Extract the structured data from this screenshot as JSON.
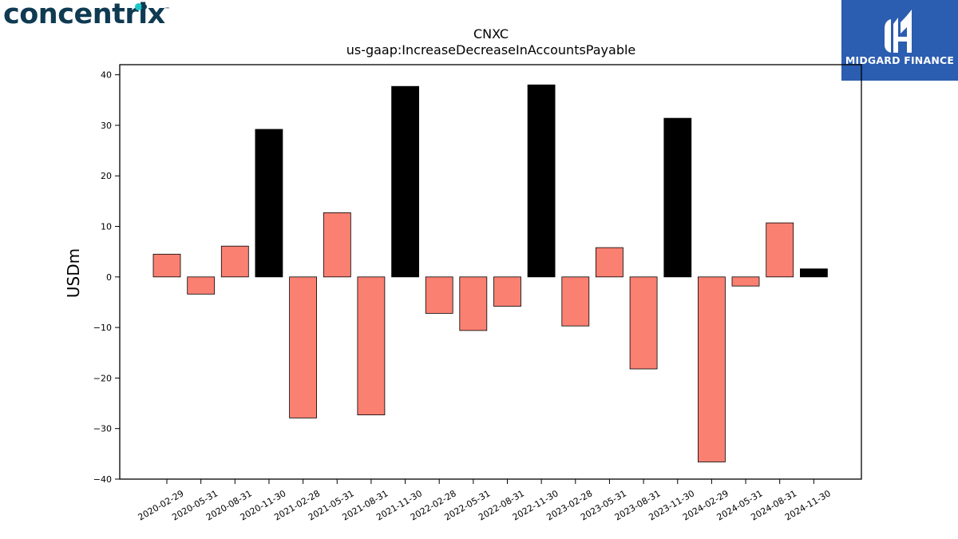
{
  "logos": {
    "left_text": "concentrix",
    "left_tm": "™",
    "right_text": "MIDGARD FINANCE"
  },
  "colors": {
    "negative_or_interim": "#fa8072",
    "q4": "#000000",
    "brand_blue": "#2b5db0"
  },
  "chart_data": {
    "type": "bar",
    "title": "CNXC",
    "subtitle": "us-gaap:IncreaseDecreaseInAccountsPayable",
    "xlabel": "",
    "ylabel": "USDm",
    "ylim": [
      -40,
      42
    ],
    "yticks": [
      -40,
      -30,
      -20,
      -10,
      0,
      10,
      20,
      30,
      40
    ],
    "grid": false,
    "categories": [
      "2020-02-29",
      "2020-05-31",
      "2020-08-31",
      "2020-11-30",
      "2021-02-28",
      "2021-05-31",
      "2021-08-31",
      "2021-11-30",
      "2022-02-28",
      "2022-05-31",
      "2022-08-31",
      "2022-11-30",
      "2023-02-28",
      "2023-05-31",
      "2023-08-31",
      "2023-11-30",
      "2024-02-29",
      "2024-05-31",
      "2024-08-31",
      "2024-11-30"
    ],
    "values": [
      4.5,
      -3.4,
      6.1,
      29.2,
      -27.9,
      12.7,
      -27.3,
      37.7,
      -7.2,
      -10.6,
      -5.8,
      38.0,
      -9.7,
      5.8,
      -18.2,
      31.4,
      -36.6,
      -1.8,
      10.7,
      1.6
    ],
    "bar_colors": [
      "#fa8072",
      "#fa8072",
      "#fa8072",
      "#000000",
      "#fa8072",
      "#fa8072",
      "#fa8072",
      "#000000",
      "#fa8072",
      "#fa8072",
      "#fa8072",
      "#000000",
      "#fa8072",
      "#fa8072",
      "#fa8072",
      "#000000",
      "#fa8072",
      "#fa8072",
      "#fa8072",
      "#000000"
    ]
  }
}
